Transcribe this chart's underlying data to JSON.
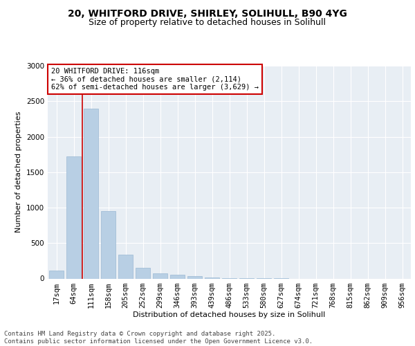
{
  "title_line1": "20, WHITFORD DRIVE, SHIRLEY, SOLIHULL, B90 4YG",
  "title_line2": "Size of property relative to detached houses in Solihull",
  "xlabel": "Distribution of detached houses by size in Solihull",
  "ylabel": "Number of detached properties",
  "categories": [
    "17sqm",
    "64sqm",
    "111sqm",
    "158sqm",
    "205sqm",
    "252sqm",
    "299sqm",
    "346sqm",
    "393sqm",
    "439sqm",
    "486sqm",
    "533sqm",
    "580sqm",
    "627sqm",
    "674sqm",
    "721sqm",
    "768sqm",
    "815sqm",
    "862sqm",
    "909sqm",
    "956sqm"
  ],
  "values": [
    110,
    1720,
    2400,
    950,
    340,
    150,
    75,
    50,
    30,
    15,
    5,
    2,
    1,
    1,
    0,
    0,
    0,
    0,
    0,
    0,
    0
  ],
  "bar_color": "#b8cfe4",
  "bar_edge_color": "#9ab8d4",
  "red_line_x": 1.5,
  "annotation_text": "20 WHITFORD DRIVE: 116sqm\n← 36% of detached houses are smaller (2,114)\n62% of semi-detached houses are larger (3,629) →",
  "annotation_box_color": "#ffffff",
  "annotation_box_edge_color": "#cc0000",
  "ylim": [
    0,
    3000
  ],
  "yticks": [
    0,
    500,
    1000,
    1500,
    2000,
    2500,
    3000
  ],
  "background_color": "#e8eef4",
  "grid_color": "#ffffff",
  "footer_line1": "Contains HM Land Registry data © Crown copyright and database right 2025.",
  "footer_line2": "Contains public sector information licensed under the Open Government Licence v3.0.",
  "title_fontsize": 10,
  "subtitle_fontsize": 9,
  "axis_label_fontsize": 8,
  "tick_fontsize": 7.5,
  "footer_fontsize": 6.5,
  "annotation_fontsize": 7.5
}
